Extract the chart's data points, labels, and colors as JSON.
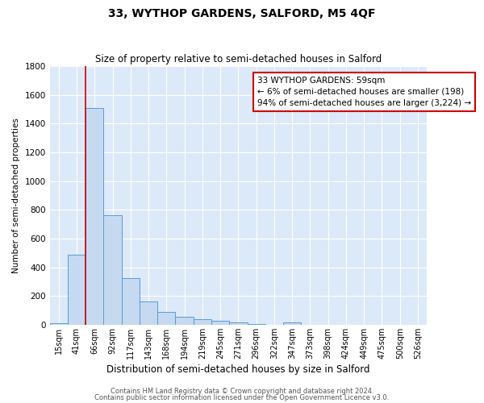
{
  "title": "33, WYTHOP GARDENS, SALFORD, M5 4QF",
  "subtitle": "Size of property relative to semi-detached houses in Salford",
  "xlabel": "Distribution of semi-detached houses by size in Salford",
  "ylabel": "Number of semi-detached properties",
  "categories": [
    "15sqm",
    "41sqm",
    "66sqm",
    "92sqm",
    "117sqm",
    "143sqm",
    "168sqm",
    "194sqm",
    "219sqm",
    "245sqm",
    "271sqm",
    "296sqm",
    "322sqm",
    "347sqm",
    "373sqm",
    "398sqm",
    "424sqm",
    "449sqm",
    "475sqm",
    "500sqm",
    "526sqm"
  ],
  "values": [
    10,
    490,
    1510,
    760,
    325,
    160,
    90,
    55,
    40,
    25,
    15,
    5,
    0,
    15,
    0,
    0,
    0,
    0,
    0,
    0,
    0
  ],
  "bar_color": "#c5d9f0",
  "bar_edge_color": "#5b9bd5",
  "property_line_color": "#cc0000",
  "annotation_text_line1": "33 WYTHOP GARDENS: 59sqm",
  "annotation_text_line2": "← 6% of semi-detached houses are smaller (198)",
  "annotation_text_line3": "94% of semi-detached houses are larger (3,224) →",
  "annotation_box_color": "#ffffff",
  "annotation_box_edge_color": "#cc0000",
  "ylim": [
    0,
    1800
  ],
  "yticks": [
    0,
    200,
    400,
    600,
    800,
    1000,
    1200,
    1400,
    1600,
    1800
  ],
  "background_color": "#dce9f8",
  "grid_color": "#ffffff",
  "footer_line1": "Contains HM Land Registry data © Crown copyright and database right 2024.",
  "footer_line2": "Contains public sector information licensed under the Open Government Licence v3.0."
}
